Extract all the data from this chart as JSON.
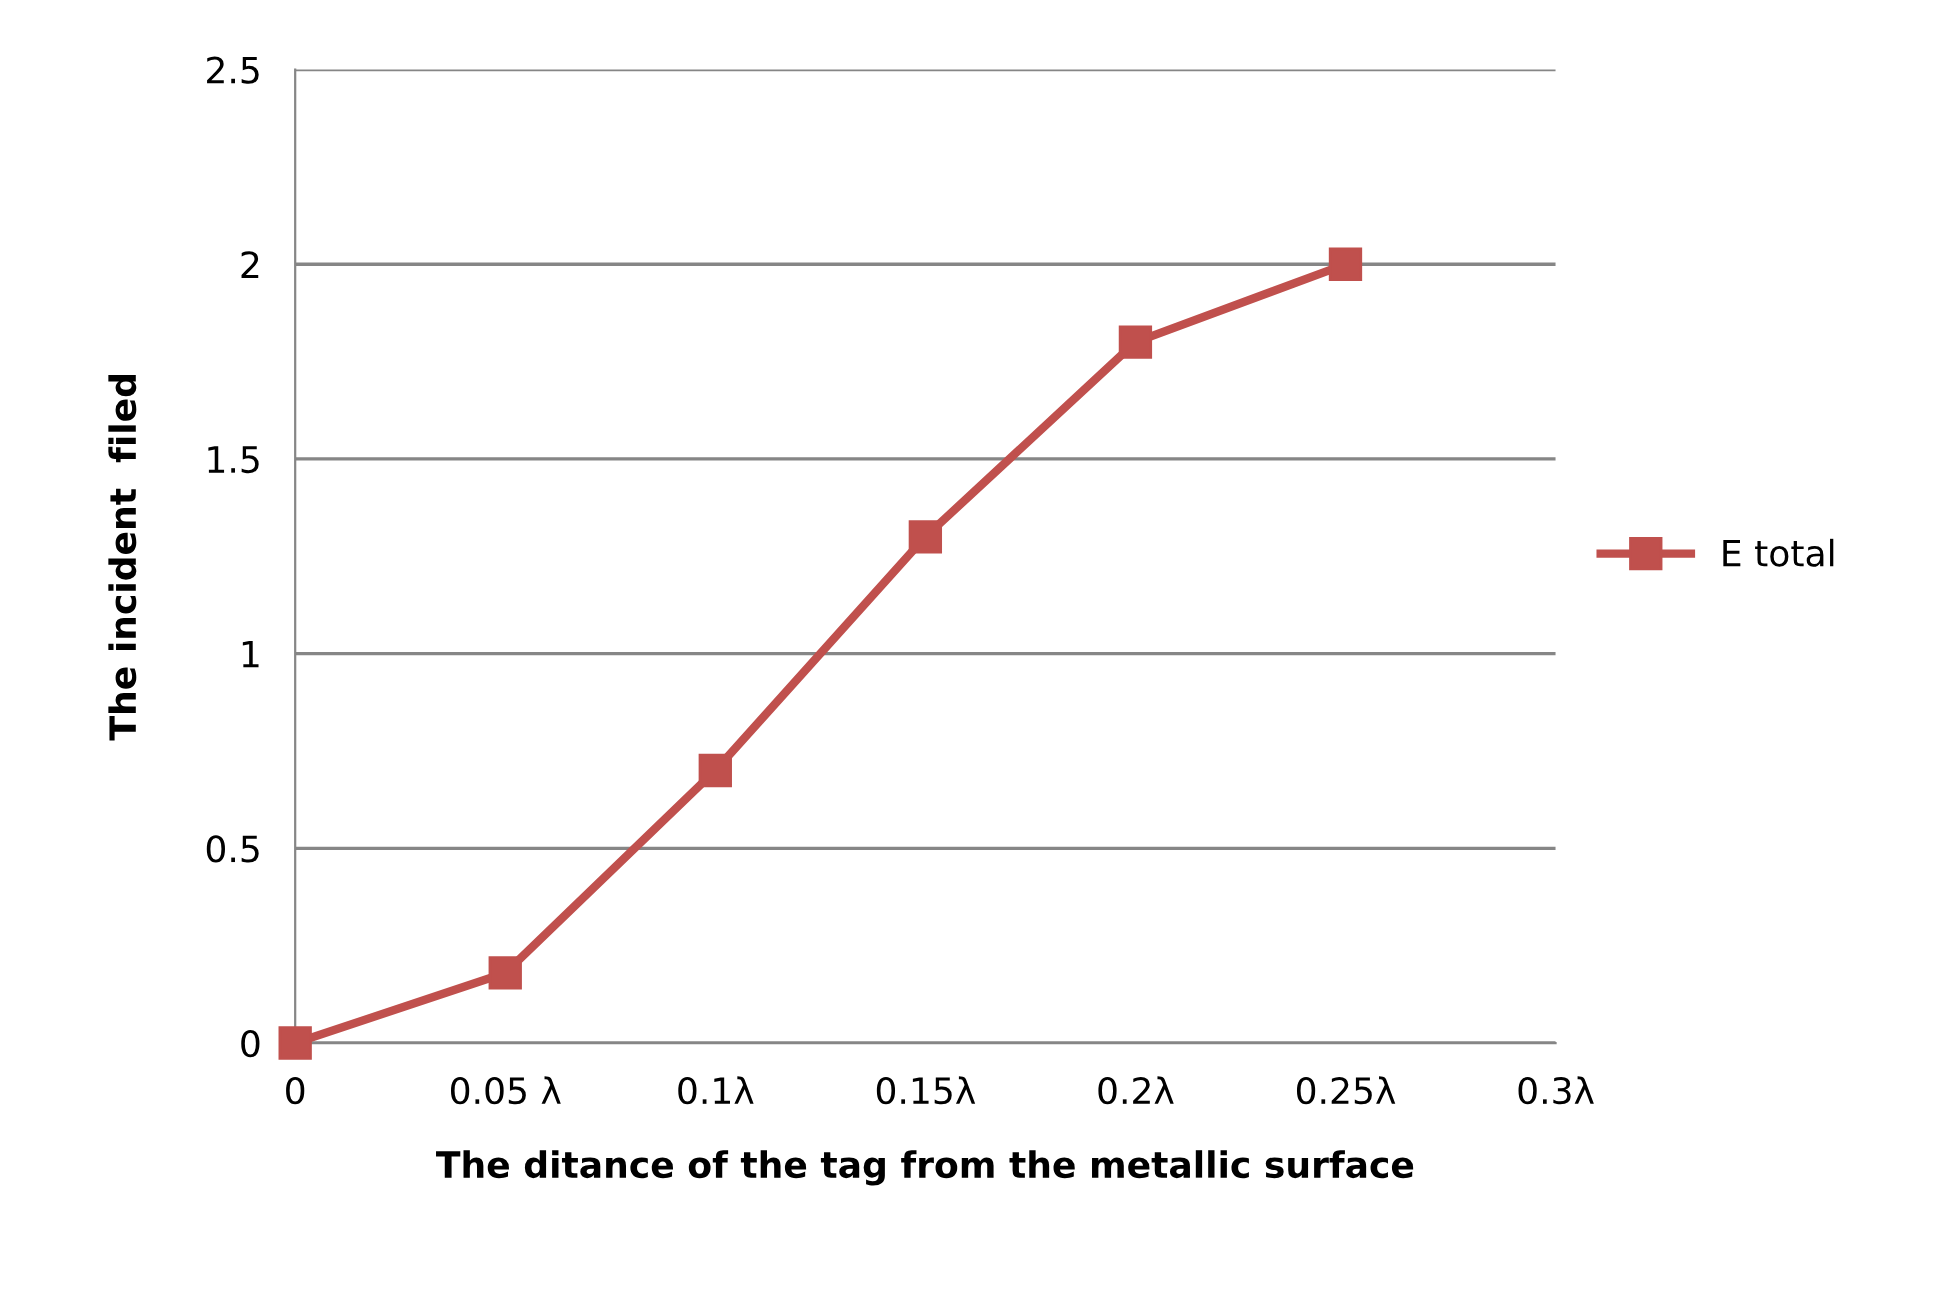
{
  "chart_data": {
    "type": "line",
    "xlabel": "The ditance of the tag from the metallic surface",
    "ylabel": "The incident  filed",
    "categories": [
      "0",
      "0.05 λ",
      "0.1λ",
      "0.15λ",
      "0.2λ",
      "0.25λ",
      "0.3λ"
    ],
    "series": [
      {
        "name": "E total",
        "color": "#c0504d",
        "values": [
          0,
          0.18,
          0.7,
          1.3,
          1.8,
          2.0,
          null
        ]
      }
    ],
    "ylim": [
      0,
      2.5
    ],
    "yticks": [
      0,
      0.5,
      1,
      1.5,
      2,
      2.5
    ],
    "grid": "y",
    "legend": "right",
    "marker": "square",
    "line_style": "solid"
  }
}
